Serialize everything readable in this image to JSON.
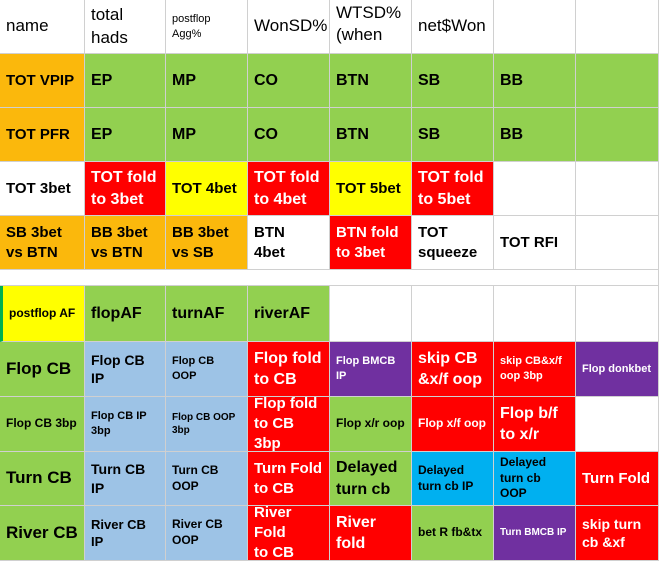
{
  "header": {
    "name": "name",
    "total_hands": "total hads",
    "postflop_agg": "postflop Agg%",
    "wonsd": "WonSD%",
    "wtsd": "WTSD%\n(when",
    "net_won": "net$Won"
  },
  "vpip_row": [
    "TOT VPIP",
    "EP",
    "MP",
    "CO",
    "BTN",
    "SB",
    "BB"
  ],
  "pfr_row": [
    "TOT PFR",
    "EP",
    "MP",
    "CO",
    "BTN",
    "SB",
    "BB"
  ],
  "threebet_row": [
    "TOT 3bet",
    "TOT fold\nto 3bet",
    "TOT 4bet",
    "TOT fold\nto 4bet",
    "TOT 5bet",
    "TOT fold\nto 5bet"
  ],
  "sb3bet_row": [
    "SB 3bet\n vs BTN",
    "BB 3bet\nvs BTN",
    "BB 3bet\nvs SB",
    "BTN\n4bet",
    "BTN fold\nto 3bet",
    "TOT\nsqueeze",
    "TOT RFI"
  ],
  "af_row": [
    "postflop AF",
    "flopAF",
    "turnAF",
    "riverAF"
  ],
  "flopcb_row": [
    "Flop CB",
    "Flop CB IP",
    "Flop CB OOP",
    "Flop fold\n to CB",
    "Flop BMCB IP",
    "skip CB\n&x/f oop",
    "skip CB&x/f\noop 3bp",
    "Flop donkbet"
  ],
  "flopcb3_row": [
    "Flop CB 3bp",
    "Flop CB IP 3bp",
    "Flop CB OOP 3bp",
    "Flop fold\nto CB 3bp",
    "Flop x/r oop",
    "Flop x/f oop",
    "Flop b/f\n to x/r"
  ],
  "turncb_row": [
    "Turn CB",
    "Turn CB IP",
    "Turn CB OOP",
    "Turn Fold\n to CB",
    "Delayed\nturn cb",
    "Delayed\nturn cb IP",
    "Delayed\nturn cb OOP",
    "Turn Fold"
  ],
  "rivercb_row": [
    "River CB",
    "River CB IP",
    "River CB OOP",
    "River Fold\nto CB",
    "River fold",
    "bet R fb&tx",
    "Turn BMCB IP",
    "skip turn\n cb &xf"
  ]
}
